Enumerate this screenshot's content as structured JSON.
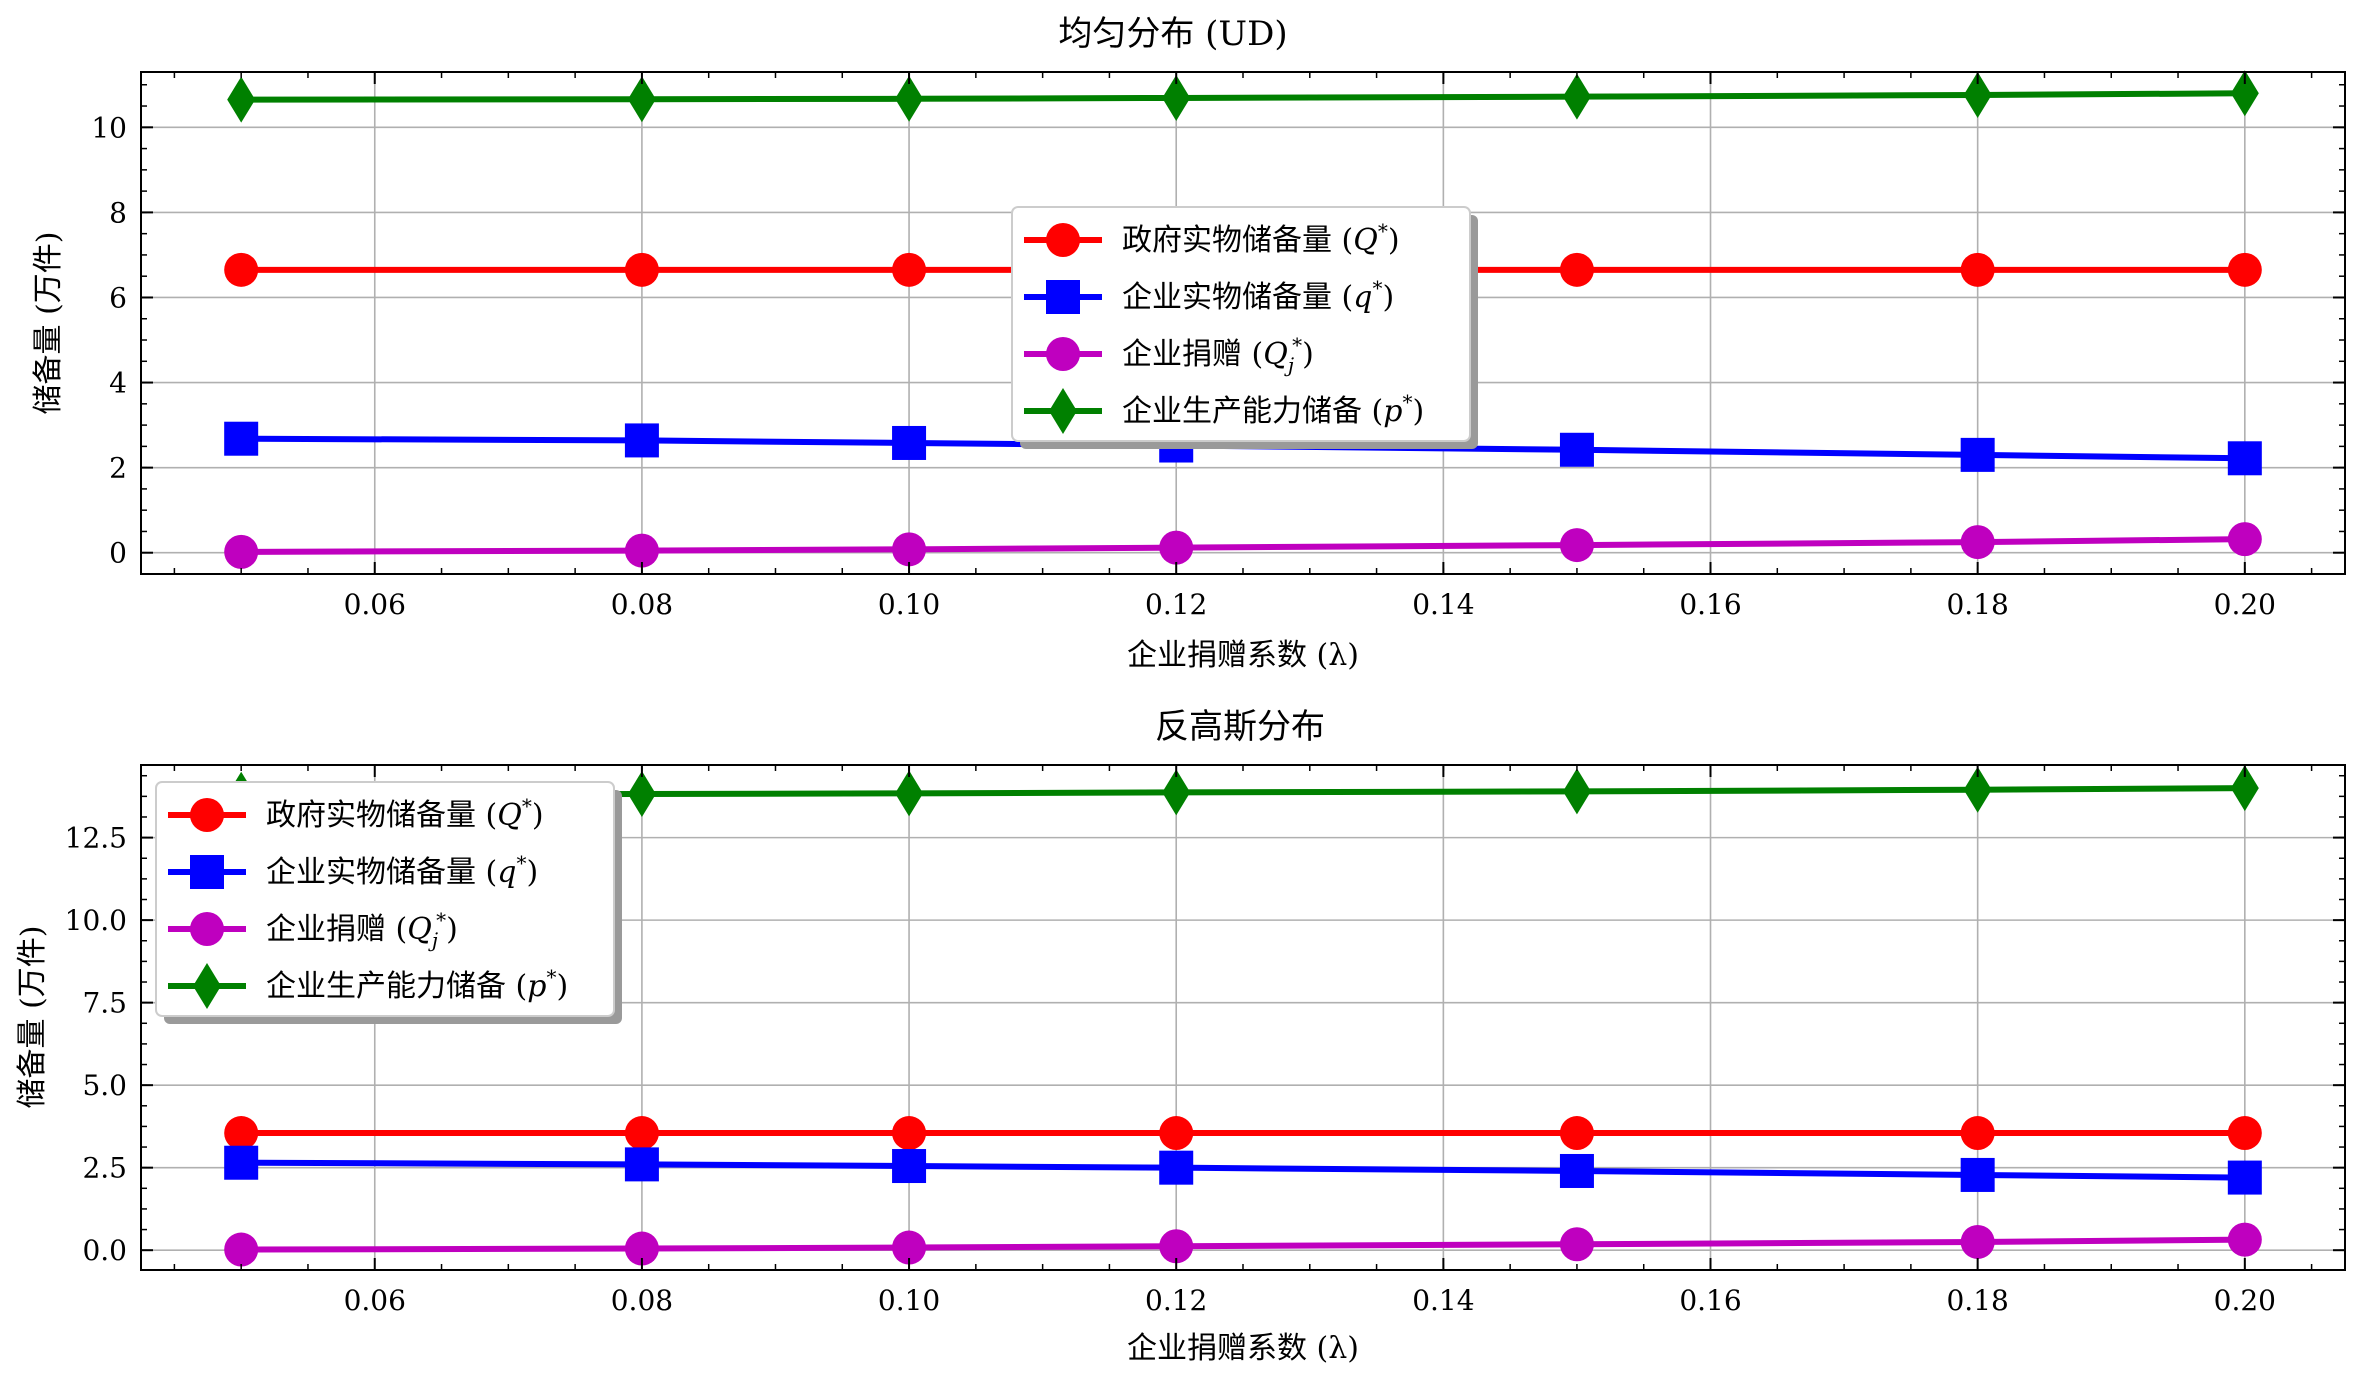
{
  "colors": {
    "gov": "#ff0000",
    "ent_phys": "#0000ff",
    "donation": "#bf00bf",
    "capacity": "#008000"
  },
  "chart_data": [
    {
      "type": "line",
      "title": "均匀分布 (UD)",
      "xlabel": "企业捐赠系数 (λ)",
      "ylabel": "储备量 (万件)",
      "x": [
        0.05,
        0.08,
        0.1,
        0.12,
        0.15,
        0.18,
        0.2
      ],
      "xlim": [
        0.0425,
        0.2075
      ],
      "ylim": [
        -0.5,
        11.3
      ],
      "xticks": [
        "0.06",
        "0.08",
        "0.10",
        "0.12",
        "0.14",
        "0.16",
        "0.18",
        "0.20"
      ],
      "yticks": [
        "0",
        "2",
        "4",
        "6",
        "8",
        "10"
      ],
      "legend_position": "center",
      "grid": true,
      "series": [
        {
          "name": "政府实物储备量",
          "symbol": "Q",
          "sup": "*",
          "sub": "",
          "marker": "circle",
          "color_key": "gov",
          "values": [
            6.65,
            6.65,
            6.65,
            6.65,
            6.65,
            6.65,
            6.65
          ]
        },
        {
          "name": "企业实物储备量",
          "symbol": "q",
          "sup": "*",
          "sub": "",
          "marker": "square",
          "color_key": "ent_phys",
          "values": [
            2.68,
            2.64,
            2.58,
            2.52,
            2.42,
            2.3,
            2.22
          ]
        },
        {
          "name": "企业捐赠",
          "symbol": "Q",
          "sup": "*",
          "sub": "j",
          "marker": "circle",
          "color_key": "donation",
          "values": [
            0.02,
            0.05,
            0.08,
            0.12,
            0.18,
            0.25,
            0.32
          ]
        },
        {
          "name": "企业生产能力储备",
          "symbol": "p",
          "sup": "*",
          "sub": "",
          "marker": "diamond",
          "color_key": "capacity",
          "values": [
            10.65,
            10.66,
            10.67,
            10.69,
            10.72,
            10.76,
            10.8
          ]
        }
      ]
    },
    {
      "type": "line",
      "title": "反高斯分布",
      "xlabel": "企业捐赠系数 (λ)",
      "ylabel": "储备量 (万件)",
      "x": [
        0.05,
        0.08,
        0.1,
        0.12,
        0.15,
        0.18,
        0.2
      ],
      "xlim": [
        0.0425,
        0.2075
      ],
      "ylim": [
        -0.6,
        14.7
      ],
      "xticks": [
        "0.06",
        "0.08",
        "0.10",
        "0.12",
        "0.14",
        "0.16",
        "0.18",
        "0.20"
      ],
      "yticks": [
        "0.0",
        "2.5",
        "5.0",
        "7.5",
        "10.0",
        "12.5"
      ],
      "legend_position": "upper left",
      "grid": true,
      "series": [
        {
          "name": "政府实物储备量",
          "symbol": "Q",
          "sup": "*",
          "sub": "",
          "marker": "circle",
          "color_key": "gov",
          "values": [
            3.55,
            3.55,
            3.55,
            3.55,
            3.55,
            3.55,
            3.55
          ]
        },
        {
          "name": "企业实物储备量",
          "symbol": "q",
          "sup": "*",
          "sub": "",
          "marker": "square",
          "color_key": "ent_phys",
          "values": [
            2.65,
            2.6,
            2.55,
            2.5,
            2.4,
            2.28,
            2.2
          ]
        },
        {
          "name": "企业捐赠",
          "symbol": "Q",
          "sup": "*",
          "sub": "j",
          "marker": "circle",
          "color_key": "donation",
          "values": [
            0.02,
            0.05,
            0.08,
            0.12,
            0.18,
            0.25,
            0.32
          ]
        },
        {
          "name": "企业生产能力储备",
          "symbol": "p",
          "sup": "*",
          "sub": "",
          "marker": "diamond",
          "color_key": "capacity",
          "values": [
            13.8,
            13.82,
            13.84,
            13.87,
            13.9,
            13.95,
            14.0
          ]
        }
      ]
    }
  ]
}
